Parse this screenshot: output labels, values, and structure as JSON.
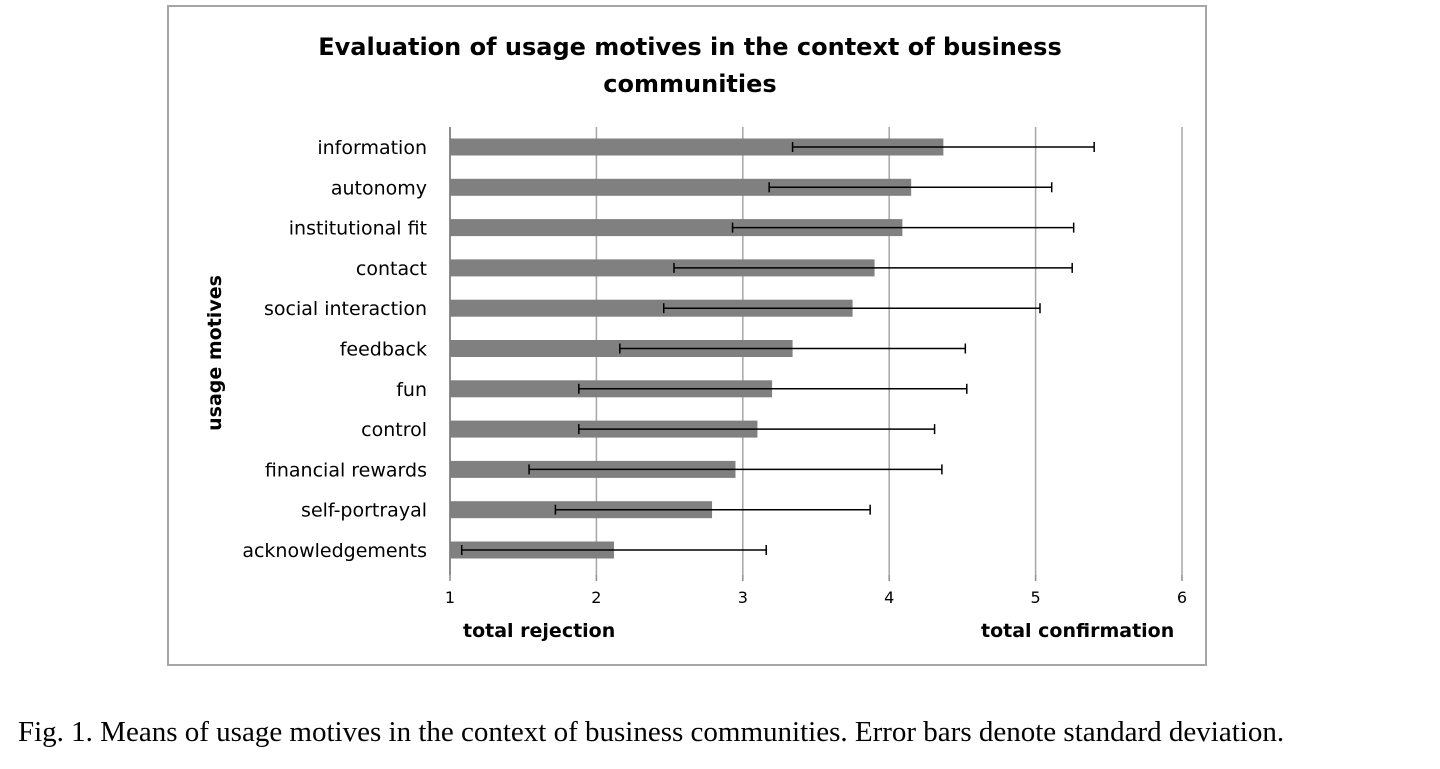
{
  "caption": "Fig. 1. Means of usage motives in the context of business communities. Error bars denote standard deviation.",
  "chart_data": {
    "type": "bar",
    "orientation": "horizontal",
    "title_lines": [
      "Evaluation of usage motives in the context of business",
      "communities"
    ],
    "ylabel": "usage motives",
    "xlabel_left": "total rejection",
    "xlabel_right": "total confirmation",
    "xlim": [
      1,
      6
    ],
    "xticks": [
      "1",
      "2",
      "3",
      "4",
      "5",
      "6"
    ],
    "grid": "vertical",
    "bar_color": "#808080",
    "categories": [
      "information",
      "autonomy",
      "institutional fit",
      "contact",
      "social interaction",
      "feedback",
      "fun",
      "control",
      "financial rewards",
      "self-portrayal",
      "acknowledgements"
    ],
    "values": [
      4.37,
      4.15,
      4.09,
      3.9,
      3.75,
      3.34,
      3.2,
      3.1,
      2.95,
      2.79,
      2.12
    ],
    "error_low": [
      3.34,
      3.18,
      2.93,
      2.53,
      2.46,
      2.16,
      1.88,
      1.88,
      1.54,
      1.72,
      1.08
    ],
    "error_high": [
      5.4,
      5.11,
      5.26,
      5.25,
      5.03,
      4.52,
      4.53,
      4.31,
      4.36,
      3.87,
      3.16
    ]
  }
}
